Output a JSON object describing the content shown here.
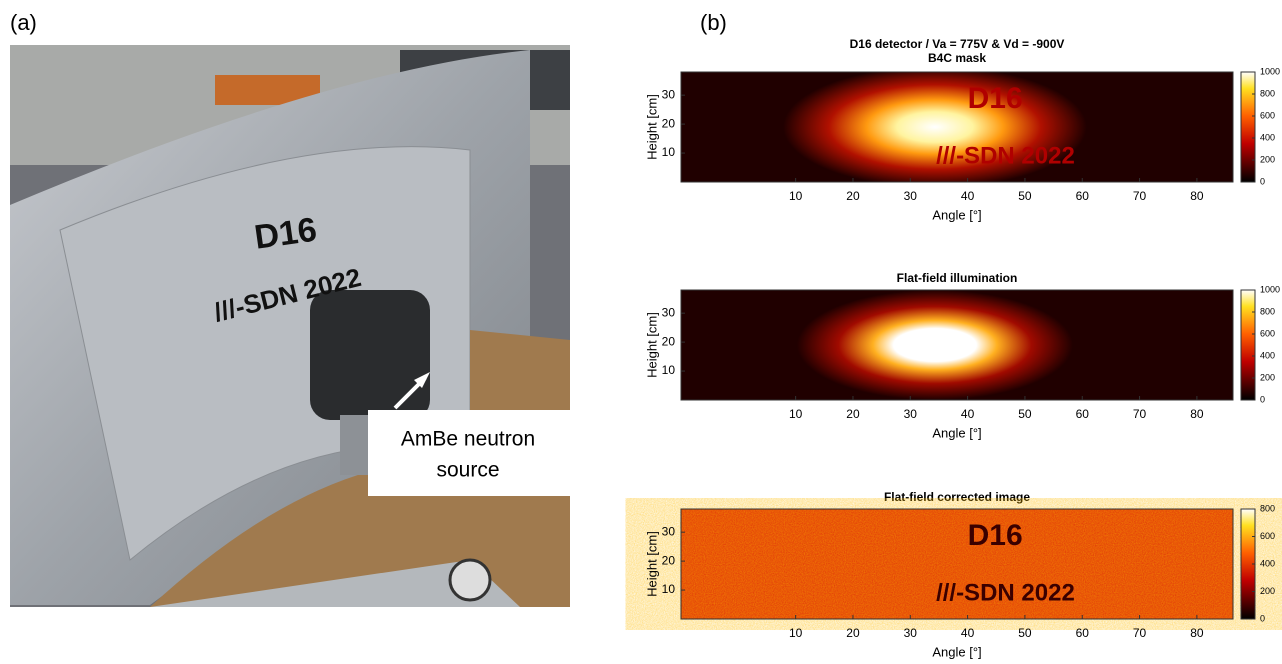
{
  "panels": {
    "a_label": "(a)",
    "b_label": "(b)",
    "photo_texts": [
      "D16",
      "///-SDN 2022"
    ],
    "annotation": [
      "AmBe neutron",
      "source"
    ]
  },
  "chart_data": [
    {
      "type": "heatmap",
      "title": "D16 detector / Va = 775V & Vd = -900V",
      "subtitle": "B4C mask",
      "overlay_texts": [
        "D16",
        "///-SDN 2022"
      ],
      "xlabel": "Angle [°]",
      "ylabel": "Height [cm]",
      "xlim": [
        -10,
        86.3
      ],
      "ylim": [
        0,
        38
      ],
      "xticks": [
        10,
        20,
        30,
        40,
        50,
        60,
        70,
        80
      ],
      "yticks": [
        10,
        20,
        30
      ],
      "colorbar": {
        "lim": [
          0,
          1000
        ],
        "ticks": [
          0,
          200,
          400,
          600,
          800,
          1000
        ]
      }
    },
    {
      "type": "heatmap",
      "title": "Flat-field illumination",
      "xlabel": "Angle [°]",
      "ylabel": "Height [cm]",
      "xlim": [
        -10,
        86.3
      ],
      "ylim": [
        0,
        38
      ],
      "xticks": [
        10,
        20,
        30,
        40,
        50,
        60,
        70,
        80
      ],
      "yticks": [
        10,
        20,
        30
      ],
      "colorbar": {
        "lim": [
          0,
          1000
        ],
        "ticks": [
          0,
          200,
          400,
          600,
          800,
          1000
        ]
      }
    },
    {
      "type": "heatmap",
      "title": "Flat-field corrected image",
      "overlay_texts": [
        "D16",
        "///-SDN 2022"
      ],
      "xlabel": "Angle [°]",
      "ylabel": "Height [cm]",
      "xlim": [
        -10,
        86.3
      ],
      "ylim": [
        0,
        38
      ],
      "xticks": [
        10,
        20,
        30,
        40,
        50,
        60,
        70,
        80
      ],
      "yticks": [
        10,
        20,
        30
      ],
      "colorbar": {
        "lim": [
          0,
          800
        ],
        "ticks": [
          0,
          200,
          400,
          600,
          800
        ]
      }
    }
  ]
}
